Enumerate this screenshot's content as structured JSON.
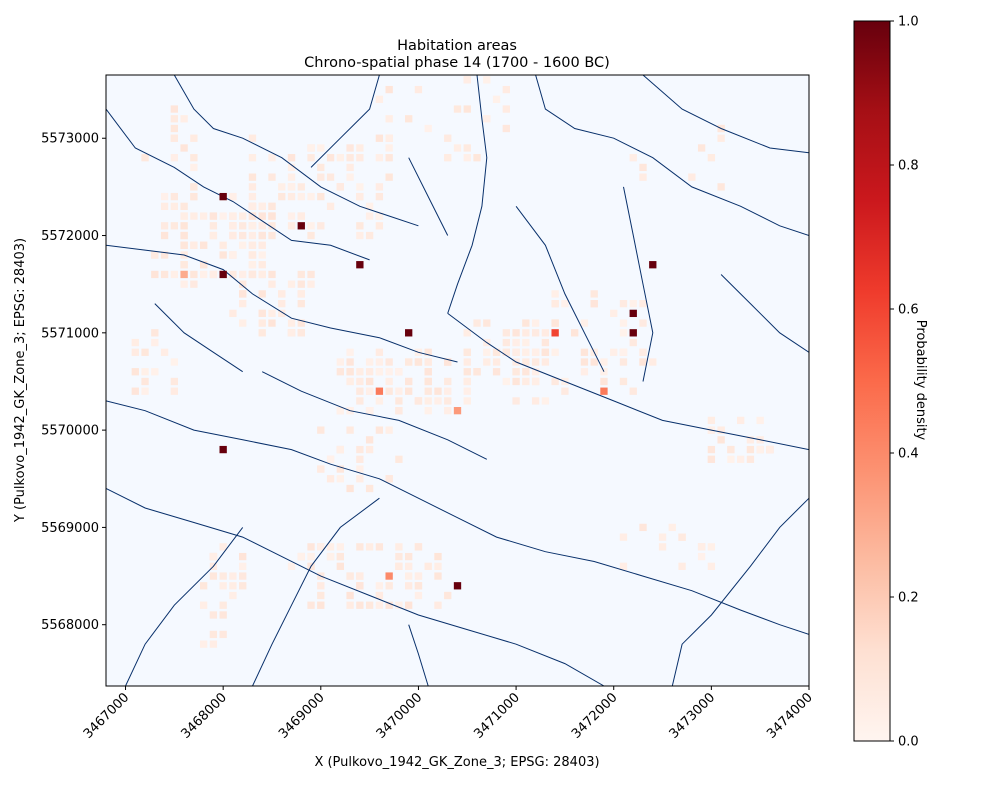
{
  "chart_data": {
    "type": "heatmap",
    "title": "Habitation areas",
    "subtitle": "Chrono-spatial phase 14 (1700 - 1600 BC)",
    "xlabel": "X (Pulkovo_1942_GK_Zone_3; EPSG: 28403)",
    "ylabel": "Y (Pulkovo_1942_GK_Zone_3; EPSG: 28403)",
    "xlim": [
      3466800,
      3474000
    ],
    "ylim": [
      5567370,
      5573650
    ],
    "x_ticks": [
      3467000,
      3468000,
      3469000,
      3470000,
      3471000,
      3472000,
      3473000,
      3474000
    ],
    "x_tick_labels": [
      "3467000",
      "3468000",
      "3469000",
      "3470000",
      "3471000",
      "3472000",
      "3473000",
      "3474000"
    ],
    "y_ticks": [
      5568000,
      5569000,
      5570000,
      5571000,
      5572000,
      5573000
    ],
    "y_tick_labels": [
      "5568000",
      "5569000",
      "5570000",
      "5571000",
      "5572000",
      "5573000"
    ],
    "grid": false,
    "background_color": "#f5f9ff",
    "river_color": "#08306b",
    "colormap": "Reds",
    "colorbar": {
      "label": "Probability density",
      "range": [
        0.0,
        1.0
      ],
      "ticks": [
        0.0,
        0.2,
        0.4,
        0.6,
        0.8,
        1.0
      ],
      "tick_labels": [
        "0.0",
        "0.2",
        "0.4",
        "0.6",
        "0.8",
        "1.0"
      ]
    },
    "cell_size": 100,
    "high_density_cells": [
      {
        "x": 3468000,
        "y": 5572400,
        "value": 1.0
      },
      {
        "x": 3468800,
        "y": 5572100,
        "value": 1.0
      },
      {
        "x": 3469400,
        "y": 5571700,
        "value": 1.0
      },
      {
        "x": 3468000,
        "y": 5571600,
        "value": 1.0
      },
      {
        "x": 3472400,
        "y": 5571700,
        "value": 1.0
      },
      {
        "x": 3472200,
        "y": 5571200,
        "value": 1.0
      },
      {
        "x": 3472200,
        "y": 5571000,
        "value": 1.0
      },
      {
        "x": 3469900,
        "y": 5571000,
        "value": 1.0
      },
      {
        "x": 3468000,
        "y": 5569800,
        "value": 1.0
      },
      {
        "x": 3470400,
        "y": 5568400,
        "value": 1.0
      },
      {
        "x": 3471400,
        "y": 5571000,
        "value": 0.6
      },
      {
        "x": 3469600,
        "y": 5570400,
        "value": 0.45
      },
      {
        "x": 3471900,
        "y": 5570400,
        "value": 0.45
      },
      {
        "x": 3470400,
        "y": 5570200,
        "value": 0.35
      },
      {
        "x": 3469700,
        "y": 5568500,
        "value": 0.4
      },
      {
        "x": 3467600,
        "y": 5571600,
        "value": 0.3
      }
    ]
  }
}
